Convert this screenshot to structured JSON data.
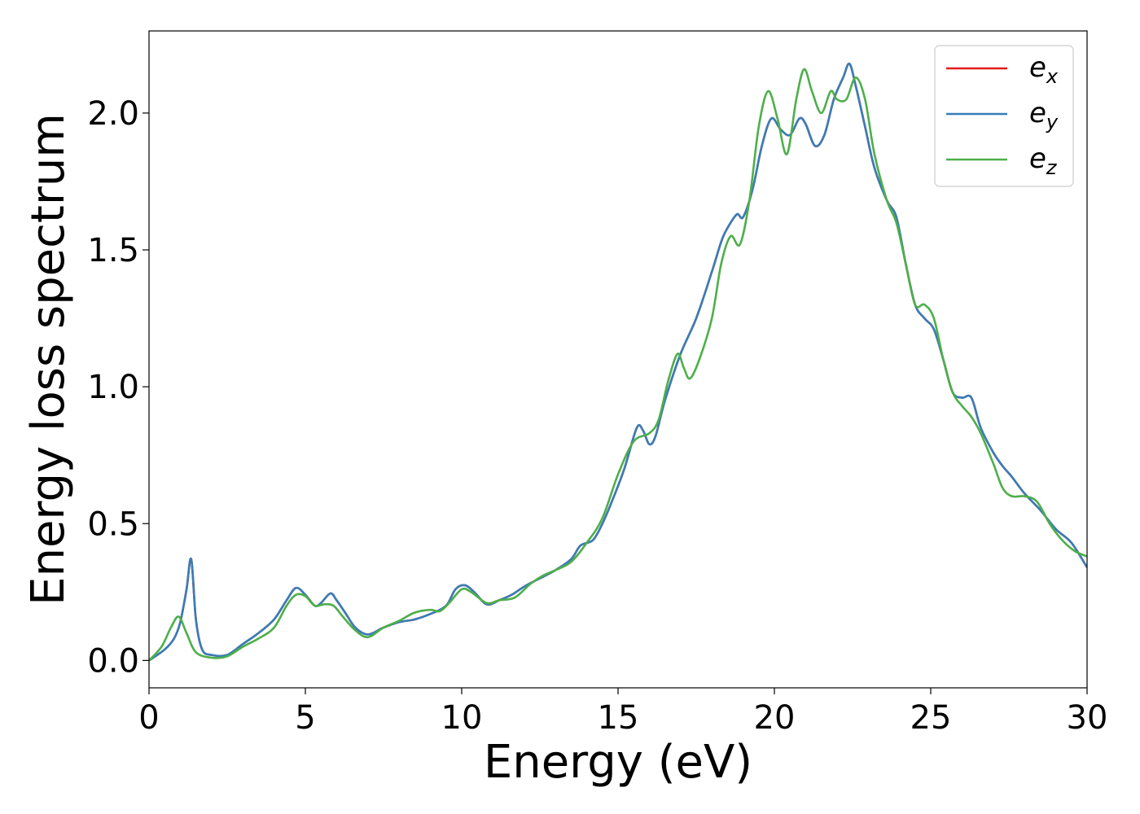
{
  "chart_data": {
    "type": "line",
    "xlabel": "Energy (eV)",
    "ylabel": "Energy loss spectrum",
    "xlim": [
      0,
      30
    ],
    "ylim": [
      -0.1,
      2.3
    ],
    "x_ticks": [
      0,
      5,
      10,
      15,
      20,
      25,
      30
    ],
    "x_tick_labels": [
      "0",
      "5",
      "10",
      "15",
      "20",
      "25",
      "30"
    ],
    "y_ticks": [
      0.0,
      0.5,
      1.0,
      1.5,
      2.0
    ],
    "y_tick_labels": [
      "0.0",
      "0.5",
      "1.0",
      "1.5",
      "2.0"
    ],
    "grid": false,
    "legend_position": "top-right",
    "series": [
      {
        "name": "ex",
        "legend_base": "e",
        "legend_sub": "x",
        "color": "#e41a1c",
        "points": [
          [
            0,
            0
          ],
          [
            0.5,
            0.04
          ],
          [
            0.8,
            0.08
          ],
          [
            1.0,
            0.14
          ],
          [
            1.2,
            0.26
          ],
          [
            1.35,
            0.37
          ],
          [
            1.5,
            0.15
          ],
          [
            1.7,
            0.04
          ],
          [
            2.0,
            0.02
          ],
          [
            2.5,
            0.02
          ],
          [
            3.0,
            0.06
          ],
          [
            3.5,
            0.1
          ],
          [
            4.0,
            0.15
          ],
          [
            4.4,
            0.22
          ],
          [
            4.7,
            0.265
          ],
          [
            5.0,
            0.24
          ],
          [
            5.3,
            0.2
          ],
          [
            5.5,
            0.21
          ],
          [
            5.8,
            0.245
          ],
          [
            6.0,
            0.22
          ],
          [
            6.3,
            0.17
          ],
          [
            6.6,
            0.12
          ],
          [
            7.0,
            0.095
          ],
          [
            7.5,
            0.12
          ],
          [
            8.0,
            0.14
          ],
          [
            8.5,
            0.15
          ],
          [
            9.0,
            0.17
          ],
          [
            9.5,
            0.2
          ],
          [
            9.8,
            0.26
          ],
          [
            10.1,
            0.275
          ],
          [
            10.4,
            0.25
          ],
          [
            10.8,
            0.205
          ],
          [
            11.2,
            0.22
          ],
          [
            11.6,
            0.24
          ],
          [
            12.0,
            0.27
          ],
          [
            12.5,
            0.3
          ],
          [
            13.0,
            0.33
          ],
          [
            13.5,
            0.37
          ],
          [
            13.8,
            0.42
          ],
          [
            14.2,
            0.44
          ],
          [
            14.5,
            0.5
          ],
          [
            14.8,
            0.58
          ],
          [
            15.2,
            0.7
          ],
          [
            15.6,
            0.85
          ],
          [
            15.8,
            0.84
          ],
          [
            16.0,
            0.79
          ],
          [
            16.2,
            0.82
          ],
          [
            16.5,
            0.95
          ],
          [
            17.0,
            1.12
          ],
          [
            17.5,
            1.25
          ],
          [
            18.0,
            1.42
          ],
          [
            18.3,
            1.53
          ],
          [
            18.5,
            1.58
          ],
          [
            18.8,
            1.63
          ],
          [
            19.0,
            1.62
          ],
          [
            19.3,
            1.72
          ],
          [
            19.6,
            1.88
          ],
          [
            19.9,
            1.98
          ],
          [
            20.2,
            1.94
          ],
          [
            20.5,
            1.92
          ],
          [
            20.8,
            1.98
          ],
          [
            21.0,
            1.96
          ],
          [
            21.3,
            1.88
          ],
          [
            21.6,
            1.92
          ],
          [
            21.9,
            2.05
          ],
          [
            22.2,
            2.13
          ],
          [
            22.4,
            2.18
          ],
          [
            22.6,
            2.1
          ],
          [
            22.9,
            1.95
          ],
          [
            23.2,
            1.8
          ],
          [
            23.6,
            1.68
          ],
          [
            23.9,
            1.62
          ],
          [
            24.2,
            1.45
          ],
          [
            24.5,
            1.3
          ],
          [
            24.8,
            1.25
          ],
          [
            25.1,
            1.21
          ],
          [
            25.4,
            1.1
          ],
          [
            25.7,
            0.98
          ],
          [
            26.0,
            0.96
          ],
          [
            26.3,
            0.96
          ],
          [
            26.6,
            0.85
          ],
          [
            27.0,
            0.76
          ],
          [
            27.3,
            0.71
          ],
          [
            27.6,
            0.67
          ],
          [
            28.0,
            0.61
          ],
          [
            28.5,
            0.55
          ],
          [
            29.0,
            0.48
          ],
          [
            29.5,
            0.43
          ],
          [
            30.0,
            0.34
          ]
        ]
      },
      {
        "name": "ey",
        "legend_base": "e",
        "legend_sub": "y",
        "color": "#377eb8",
        "points": [
          [
            0,
            0
          ],
          [
            0.5,
            0.04
          ],
          [
            0.8,
            0.08
          ],
          [
            1.0,
            0.14
          ],
          [
            1.2,
            0.26
          ],
          [
            1.35,
            0.37
          ],
          [
            1.5,
            0.15
          ],
          [
            1.7,
            0.04
          ],
          [
            2.0,
            0.02
          ],
          [
            2.5,
            0.02
          ],
          [
            3.0,
            0.06
          ],
          [
            3.5,
            0.1
          ],
          [
            4.0,
            0.15
          ],
          [
            4.4,
            0.22
          ],
          [
            4.7,
            0.265
          ],
          [
            5.0,
            0.24
          ],
          [
            5.3,
            0.2
          ],
          [
            5.5,
            0.21
          ],
          [
            5.8,
            0.245
          ],
          [
            6.0,
            0.22
          ],
          [
            6.3,
            0.17
          ],
          [
            6.6,
            0.12
          ],
          [
            7.0,
            0.095
          ],
          [
            7.5,
            0.12
          ],
          [
            8.0,
            0.14
          ],
          [
            8.5,
            0.15
          ],
          [
            9.0,
            0.17
          ],
          [
            9.5,
            0.2
          ],
          [
            9.8,
            0.26
          ],
          [
            10.1,
            0.275
          ],
          [
            10.4,
            0.25
          ],
          [
            10.8,
            0.205
          ],
          [
            11.2,
            0.22
          ],
          [
            11.6,
            0.24
          ],
          [
            12.0,
            0.27
          ],
          [
            12.5,
            0.3
          ],
          [
            13.0,
            0.33
          ],
          [
            13.5,
            0.37
          ],
          [
            13.8,
            0.42
          ],
          [
            14.2,
            0.44
          ],
          [
            14.5,
            0.5
          ],
          [
            14.8,
            0.58
          ],
          [
            15.2,
            0.7
          ],
          [
            15.6,
            0.85
          ],
          [
            15.8,
            0.84
          ],
          [
            16.0,
            0.79
          ],
          [
            16.2,
            0.82
          ],
          [
            16.5,
            0.95
          ],
          [
            17.0,
            1.12
          ],
          [
            17.5,
            1.25
          ],
          [
            18.0,
            1.42
          ],
          [
            18.3,
            1.53
          ],
          [
            18.5,
            1.58
          ],
          [
            18.8,
            1.63
          ],
          [
            19.0,
            1.62
          ],
          [
            19.3,
            1.72
          ],
          [
            19.6,
            1.88
          ],
          [
            19.9,
            1.98
          ],
          [
            20.2,
            1.94
          ],
          [
            20.5,
            1.92
          ],
          [
            20.8,
            1.98
          ],
          [
            21.0,
            1.96
          ],
          [
            21.3,
            1.88
          ],
          [
            21.6,
            1.92
          ],
          [
            21.9,
            2.05
          ],
          [
            22.2,
            2.13
          ],
          [
            22.4,
            2.18
          ],
          [
            22.6,
            2.1
          ],
          [
            22.9,
            1.95
          ],
          [
            23.2,
            1.8
          ],
          [
            23.6,
            1.68
          ],
          [
            23.9,
            1.62
          ],
          [
            24.2,
            1.45
          ],
          [
            24.5,
            1.3
          ],
          [
            24.8,
            1.25
          ],
          [
            25.1,
            1.21
          ],
          [
            25.4,
            1.1
          ],
          [
            25.7,
            0.98
          ],
          [
            26.0,
            0.96
          ],
          [
            26.3,
            0.96
          ],
          [
            26.6,
            0.85
          ],
          [
            27.0,
            0.76
          ],
          [
            27.3,
            0.71
          ],
          [
            27.6,
            0.67
          ],
          [
            28.0,
            0.61
          ],
          [
            28.5,
            0.55
          ],
          [
            29.0,
            0.48
          ],
          [
            29.5,
            0.43
          ],
          [
            30.0,
            0.34
          ]
        ]
      },
      {
        "name": "ez",
        "legend_base": "e",
        "legend_sub": "z",
        "color": "#4daf4a",
        "points": [
          [
            0,
            0
          ],
          [
            0.4,
            0.05
          ],
          [
            0.7,
            0.12
          ],
          [
            0.95,
            0.16
          ],
          [
            1.2,
            0.1
          ],
          [
            1.5,
            0.03
          ],
          [
            2.0,
            0.01
          ],
          [
            2.5,
            0.015
          ],
          [
            3.0,
            0.05
          ],
          [
            3.5,
            0.08
          ],
          [
            4.0,
            0.12
          ],
          [
            4.4,
            0.2
          ],
          [
            4.7,
            0.24
          ],
          [
            5.0,
            0.235
          ],
          [
            5.3,
            0.2
          ],
          [
            5.6,
            0.205
          ],
          [
            5.9,
            0.2
          ],
          [
            6.2,
            0.16
          ],
          [
            6.6,
            0.11
          ],
          [
            7.0,
            0.085
          ],
          [
            7.5,
            0.12
          ],
          [
            8.0,
            0.145
          ],
          [
            8.5,
            0.175
          ],
          [
            9.0,
            0.185
          ],
          [
            9.3,
            0.18
          ],
          [
            9.6,
            0.21
          ],
          [
            10.0,
            0.26
          ],
          [
            10.3,
            0.25
          ],
          [
            10.8,
            0.21
          ],
          [
            11.2,
            0.22
          ],
          [
            11.7,
            0.23
          ],
          [
            12.2,
            0.28
          ],
          [
            12.6,
            0.31
          ],
          [
            13.0,
            0.33
          ],
          [
            13.5,
            0.36
          ],
          [
            14.0,
            0.43
          ],
          [
            14.5,
            0.52
          ],
          [
            15.0,
            0.68
          ],
          [
            15.5,
            0.8
          ],
          [
            16.0,
            0.83
          ],
          [
            16.3,
            0.88
          ],
          [
            16.6,
            1.02
          ],
          [
            16.9,
            1.12
          ],
          [
            17.1,
            1.07
          ],
          [
            17.3,
            1.03
          ],
          [
            17.6,
            1.1
          ],
          [
            18.0,
            1.25
          ],
          [
            18.3,
            1.45
          ],
          [
            18.6,
            1.55
          ],
          [
            18.9,
            1.52
          ],
          [
            19.2,
            1.68
          ],
          [
            19.5,
            1.95
          ],
          [
            19.8,
            2.08
          ],
          [
            20.1,
            1.98
          ],
          [
            20.4,
            1.85
          ],
          [
            20.7,
            2.05
          ],
          [
            20.95,
            2.16
          ],
          [
            21.2,
            2.08
          ],
          [
            21.5,
            2.0
          ],
          [
            21.8,
            2.08
          ],
          [
            22.0,
            2.05
          ],
          [
            22.3,
            2.05
          ],
          [
            22.6,
            2.13
          ],
          [
            22.9,
            2.05
          ],
          [
            23.2,
            1.85
          ],
          [
            23.6,
            1.68
          ],
          [
            23.9,
            1.6
          ],
          [
            24.2,
            1.45
          ],
          [
            24.5,
            1.3
          ],
          [
            24.8,
            1.3
          ],
          [
            25.1,
            1.25
          ],
          [
            25.4,
            1.1
          ],
          [
            25.7,
            0.98
          ],
          [
            26.0,
            0.93
          ],
          [
            26.3,
            0.89
          ],
          [
            26.6,
            0.83
          ],
          [
            27.0,
            0.72
          ],
          [
            27.3,
            0.63
          ],
          [
            27.6,
            0.6
          ],
          [
            28.0,
            0.6
          ],
          [
            28.4,
            0.58
          ],
          [
            28.8,
            0.5
          ],
          [
            29.2,
            0.44
          ],
          [
            29.6,
            0.4
          ],
          [
            30.0,
            0.38
          ]
        ]
      }
    ]
  }
}
